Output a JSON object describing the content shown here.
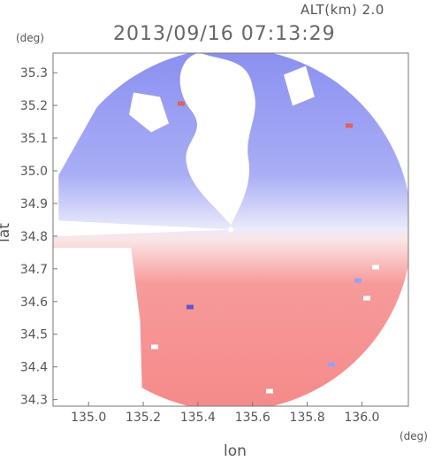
{
  "header": {
    "altitude": "ALT(km) 2.0",
    "timestamp": "2013/09/16 07:13:29"
  },
  "chart_data": {
    "type": "heatmap",
    "title": "2013/09/16 07:13:29",
    "subtitle": "ALT(km) 2.0",
    "xlabel": "lon",
    "ylabel": "lat",
    "xunit": "(deg)",
    "yunit": "(deg)",
    "xlim": [
      134.87,
      136.17
    ],
    "ylim": [
      34.28,
      35.36
    ],
    "xticks": [
      "135.0",
      "135.2",
      "135.4",
      "135.6",
      "135.8",
      "136.0"
    ],
    "yticks": [
      "34.3",
      "34.4",
      "34.5",
      "34.6",
      "34.7",
      "34.8",
      "34.9",
      "35.0",
      "35.1",
      "35.2",
      "35.3"
    ],
    "radar_center": {
      "lon": 135.52,
      "lat": 34.82
    },
    "colors": {
      "approaching": "#7f85ee",
      "receding": "#f78a8a",
      "neutral": "#f4f4fa"
    },
    "grid": false,
    "legend": "none"
  }
}
